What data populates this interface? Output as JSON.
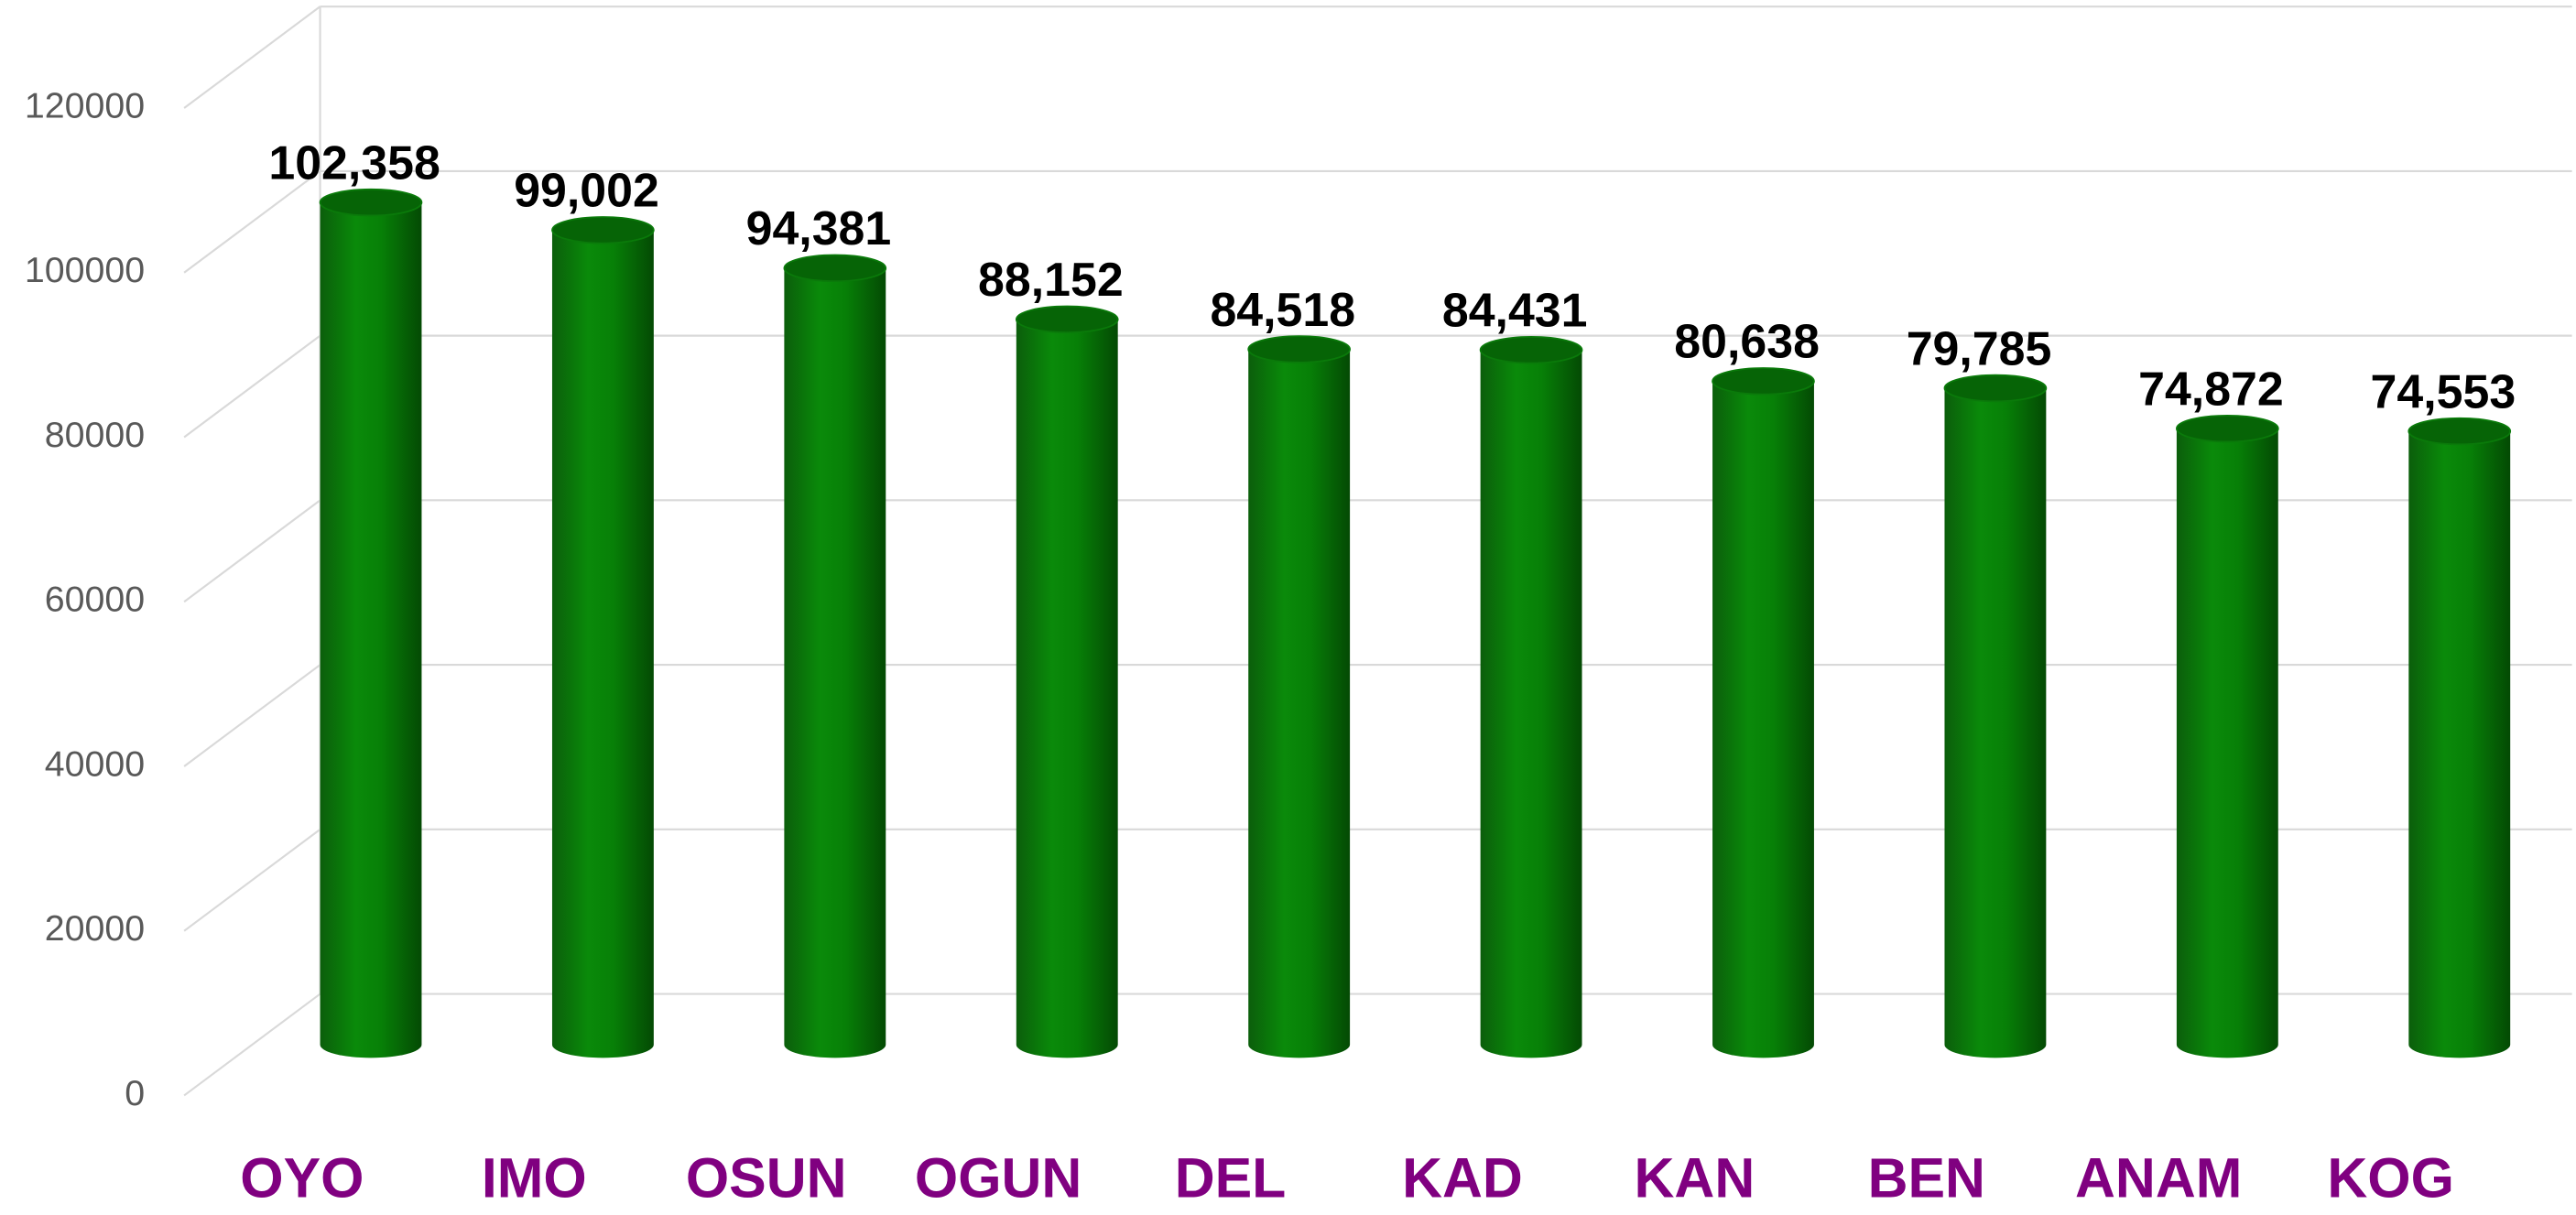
{
  "chart_data": {
    "type": "bar",
    "three_d": "cylinder",
    "categories": [
      "OYO",
      "IMO",
      "OSUN",
      "OGUN",
      "DEL",
      "KAD",
      "KAN",
      "BEN",
      "ANAM",
      "KOG"
    ],
    "values": [
      102358,
      99002,
      94381,
      88152,
      84518,
      84431,
      80638,
      79785,
      74872,
      74553
    ],
    "value_labels": [
      "102,358",
      "99,002",
      "94,381",
      "88,152",
      "84,518",
      "84,431",
      "80,638",
      "79,785",
      "74,872",
      "74,553"
    ],
    "color": "#008000",
    "category_color": "#800080",
    "ylim": [
      0,
      120000
    ],
    "yticks": [
      0,
      20000,
      40000,
      60000,
      80000,
      100000,
      120000
    ],
    "grid": true
  }
}
